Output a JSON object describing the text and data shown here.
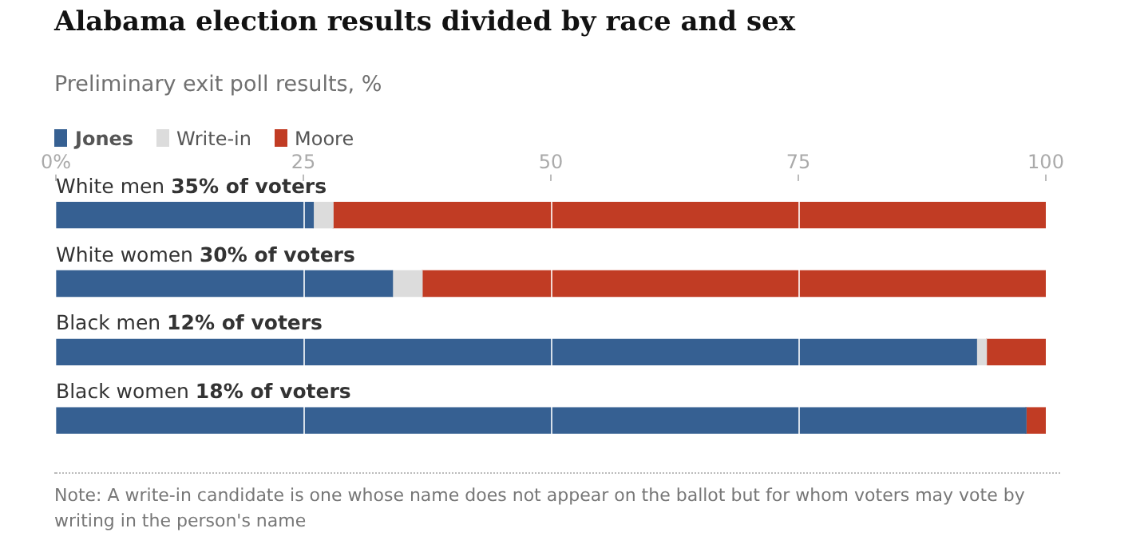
{
  "chart_data": {
    "type": "bar",
    "orientation": "horizontal",
    "stacked": true,
    "title": "Alabama election results divided by race and sex",
    "subtitle": "Preliminary exit poll results, %",
    "categories": [
      "White men 35% of voters",
      "White women 30% of voters",
      "Black men 12% of voters",
      "Black women 18% of voters"
    ],
    "series": [
      {
        "name": "Jones",
        "color": "#366092",
        "values": [
          26,
          34,
          93,
          98
        ]
      },
      {
        "name": "Write-in",
        "color": "#dcdcdc",
        "values": [
          2,
          3,
          1,
          0
        ]
      },
      {
        "name": "Moore",
        "color": "#c13c24",
        "values": [
          72,
          63,
          6,
          2
        ]
      }
    ],
    "xlim": [
      0,
      100
    ],
    "xticks": [
      {
        "value": 0,
        "label": "0%"
      },
      25,
      50,
      75,
      100
    ],
    "grid": "x",
    "legend": "top left",
    "annotations": [
      "Note: A write-in candidate is one whose name does not appear on the ballot but for whom voters may vote by writing in the person's name"
    ]
  }
}
